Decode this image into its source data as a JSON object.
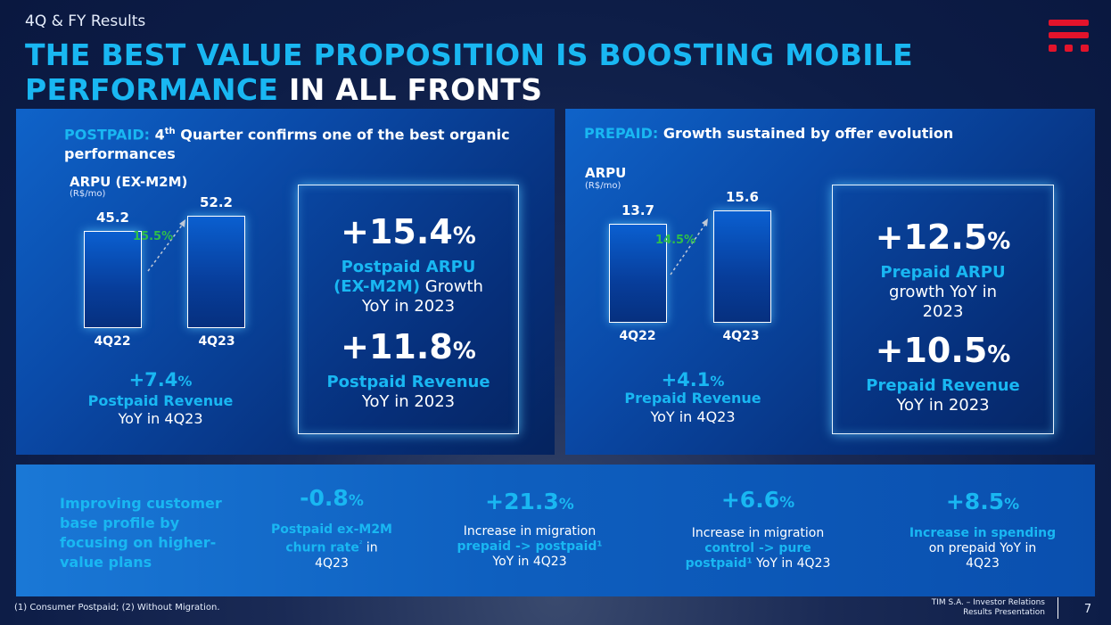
{
  "header": {
    "section": "4Q & FY Results",
    "title_line1": "THE BEST VALUE PROPOSITION IS BOOSTING MOBILE",
    "title_line2_cyan": "PERFORMANCE",
    "title_line2_white": " IN ALL FRONTS"
  },
  "logo": {
    "icon": "tim-logo-icon",
    "color": "#e3132b"
  },
  "postpaid": {
    "title_label": "POSTPAID:",
    "title_text_a": " 4",
    "title_sup": "th",
    "title_text_b": " Quarter confirms one of the best organic",
    "title_text_c": "performances",
    "chart_title": "ARPU (EX-M2M)",
    "chart_unit": "(R$/mo)",
    "growth_pct": "15.5%",
    "bottom_value": "+7.4",
    "bottom_pct": "%",
    "bottom_label": "Postpaid Revenue",
    "bottom_sub": "YoY in 4Q23",
    "box": {
      "v1": "+15.4",
      "v1_pct": "%",
      "l1_a": "Postpaid ARPU",
      "l1_b_c": "(EX-M2M)",
      "l1_b_w": " Growth",
      "l1_c": "YoY in 2023",
      "v2": "+11.8",
      "v2_pct": "%",
      "l2_a": "Postpaid Revenue",
      "l2_b": "YoY in 2023"
    }
  },
  "prepaid": {
    "title_label": "PREPAID:",
    "title_text": " Growth sustained by offer evolution",
    "chart_title": "ARPU",
    "chart_unit": "(R$/mo)",
    "growth_pct": "14.5%",
    "bottom_value": "+4.1",
    "bottom_pct": "%",
    "bottom_label": "Prepaid Revenue",
    "bottom_sub": "YoY in 4Q23",
    "box": {
      "v1": "+12.5",
      "v1_pct": "%",
      "l1_a": "Prepaid ARPU",
      "l1_b": "growth YoY in",
      "l1_c": "2023",
      "v2": "+10.5",
      "v2_pct": "%",
      "l2_a": "Prepaid Revenue",
      "l2_b": "YoY in 2023"
    }
  },
  "chart_data": [
    {
      "type": "bar",
      "title": "ARPU (EX-M2M)",
      "ylabel": "(R$/mo)",
      "categories": [
        "4Q22",
        "4Q23"
      ],
      "values": [
        45.2,
        52.2
      ],
      "value_labels": [
        "45.2",
        "52.2"
      ],
      "annotations": [
        "15.5%"
      ],
      "ylim": [
        0,
        52.2
      ]
    },
    {
      "type": "bar",
      "title": "ARPU",
      "ylabel": "(R$/mo)",
      "categories": [
        "4Q22",
        "4Q23"
      ],
      "values": [
        13.7,
        15.6
      ],
      "value_labels": [
        "13.7",
        "15.6"
      ],
      "annotations": [
        "14.5%"
      ],
      "ylim": [
        0,
        15.6
      ]
    }
  ],
  "band": {
    "headline": [
      "Improving customer",
      "base profile by",
      "focusing on higher-",
      "value plans"
    ],
    "kpis": [
      {
        "value": "-0.8",
        "pct": "%",
        "lines": [
          [
            "c",
            "Postpaid ex-M2M"
          ],
          [
            "m",
            "churn rate",
            "²",
            " in"
          ],
          [
            "w",
            "4Q23"
          ]
        ]
      },
      {
        "value": "+21.3",
        "pct": "%",
        "lines": [
          [
            "w",
            "Increase in migration"
          ],
          [
            "c",
            "prepaid -> postpaid¹"
          ],
          [
            "w",
            "YoY in 4Q23"
          ]
        ]
      },
      {
        "value": "+6.6",
        "pct": "%",
        "lines": [
          [
            "w",
            "Increase in migration"
          ],
          [
            "c",
            "control -> pure"
          ],
          [
            "m2",
            "postpaid¹",
            " YoY in 4Q23"
          ]
        ]
      },
      {
        "value": "+8.5",
        "pct": "%",
        "lines": [
          [
            "c",
            "Increase in spending"
          ],
          [
            "w",
            "on prepaid YoY in"
          ],
          [
            "w",
            "4Q23"
          ]
        ]
      }
    ]
  },
  "footer": {
    "note": "(1)    Consumer Postpaid; (2)     Without Migration.",
    "company_line1": "TIM S.A. – Investor Relations",
    "company_line2": "Results Presentation",
    "page": "7"
  }
}
